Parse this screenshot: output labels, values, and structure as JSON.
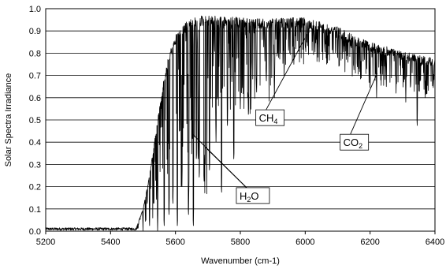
{
  "chart_data": {
    "type": "line",
    "title": "",
    "xlabel": "Wavenumber (cm-1)",
    "ylabel": "Solar Spectra Irradiance",
    "xlim": [
      5200,
      6400
    ],
    "ylim": [
      0,
      1.0
    ],
    "x_ticks": [
      5200,
      5400,
      5600,
      5800,
      6000,
      6200,
      6400
    ],
    "y_ticks": [
      0.0,
      0.1,
      0.2,
      0.3,
      0.4,
      0.5,
      0.6,
      0.7,
      0.8,
      0.9,
      1.0
    ],
    "x_tick_labels": [
      "5200",
      "5400",
      "5600",
      "5800",
      "6000",
      "6200",
      "6400"
    ],
    "y_tick_labels": [
      "0.0",
      "0.1",
      "0.2",
      "0.3",
      "0.4",
      "0.5",
      "0.6",
      "0.7",
      "0.8",
      "0.9",
      "1.0"
    ],
    "grid": "horizontal",
    "legend": "none",
    "line_color": "#000000",
    "series": [
      {
        "envelope_x": [
          5200,
          5450,
          5480,
          5500,
          5520,
          5540,
          5560,
          5580,
          5600,
          5620,
          5640,
          5660,
          5680,
          5700,
          5750,
          5800,
          5850,
          5900,
          5950,
          6000,
          6050,
          6100,
          6150,
          6200,
          6250,
          6300,
          6350,
          6400
        ],
        "envelope_y": [
          0.005,
          0.008,
          0.02,
          0.1,
          0.25,
          0.45,
          0.65,
          0.8,
          0.88,
          0.92,
          0.95,
          0.96,
          0.97,
          0.97,
          0.965,
          0.96,
          0.955,
          0.955,
          0.96,
          0.96,
          0.94,
          0.92,
          0.88,
          0.85,
          0.83,
          0.81,
          0.79,
          0.78
        ],
        "absorption_lines": [
          {
            "x": 5500,
            "y": 0.0
          },
          {
            "x": 5520,
            "y": 0.0
          },
          {
            "x": 5545,
            "y": 0.0
          },
          {
            "x": 5565,
            "y": 0.0
          },
          {
            "x": 5580,
            "y": 0.05
          },
          {
            "x": 5592,
            "y": 0.1
          },
          {
            "x": 5606,
            "y": 0.0
          },
          {
            "x": 5620,
            "y": 0.2
          },
          {
            "x": 5640,
            "y": 0.05
          },
          {
            "x": 5655,
            "y": 0.0
          },
          {
            "x": 5670,
            "y": 0.3
          },
          {
            "x": 5688,
            "y": 0.2
          },
          {
            "x": 5705,
            "y": 0.25
          },
          {
            "x": 5725,
            "y": 0.4
          },
          {
            "x": 5742,
            "y": 0.15
          },
          {
            "x": 5760,
            "y": 0.45
          },
          {
            "x": 5780,
            "y": 0.3
          },
          {
            "x": 5800,
            "y": 0.55
          },
          {
            "x": 5825,
            "y": 0.5
          },
          {
            "x": 5850,
            "y": 0.6
          },
          {
            "x": 5880,
            "y": 0.65
          },
          {
            "x": 5905,
            "y": 0.6
          },
          {
            "x": 5935,
            "y": 0.7
          },
          {
            "x": 5965,
            "y": 0.75
          },
          {
            "x": 6000,
            "y": 0.8
          },
          {
            "x": 6030,
            "y": 0.78
          },
          {
            "x": 6060,
            "y": 0.8
          },
          {
            "x": 6100,
            "y": 0.78
          },
          {
            "x": 6150,
            "y": 0.7
          },
          {
            "x": 6200,
            "y": 0.62
          },
          {
            "x": 6220,
            "y": 0.6
          },
          {
            "x": 6250,
            "y": 0.65
          },
          {
            "x": 6280,
            "y": 0.62
          },
          {
            "x": 6310,
            "y": 0.58
          },
          {
            "x": 6345,
            "y": 0.45
          },
          {
            "x": 6370,
            "y": 0.6
          },
          {
            "x": 6395,
            "y": 0.62
          }
        ]
      }
    ],
    "annotations": [
      {
        "label_main": "CH",
        "label_sub": "4",
        "label_x": 5855,
        "label_y": 0.51,
        "line_to": [
          [
            6000,
            0.87
          ]
        ]
      },
      {
        "label_main": "CO",
        "label_sub": "2",
        "label_x": 6115,
        "label_y": 0.4,
        "line_to": [
          [
            6222,
            0.71
          ]
        ]
      },
      {
        "label_main": "H",
        "label_sub": "2",
        "label_main2": "O",
        "label_x": 5795,
        "label_y": 0.16,
        "line_to": [
          [
            5650,
            0.44
          ],
          [
            5690,
            0.38
          ]
        ]
      }
    ]
  }
}
